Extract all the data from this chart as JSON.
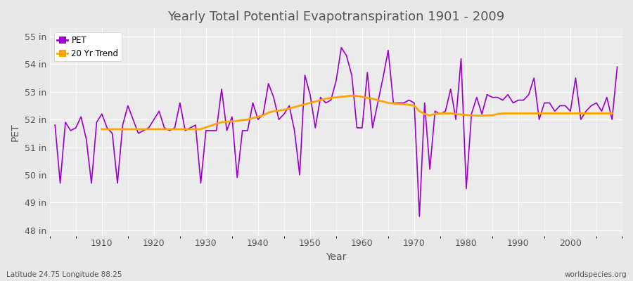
{
  "title": "Yearly Total Potential Evapotranspiration 1901 - 2009",
  "xlabel": "Year",
  "ylabel": "PET",
  "pet_color": "#9B00C8",
  "trend_color": "#FFA500",
  "bg_color": "#E8E8E8",
  "plot_bg_color": "#EBEBEB",
  "grid_color": "#FFFFFF",
  "text_color": "#555555",
  "years": [
    1901,
    1902,
    1903,
    1904,
    1905,
    1906,
    1907,
    1908,
    1909,
    1910,
    1911,
    1912,
    1913,
    1914,
    1915,
    1916,
    1917,
    1918,
    1919,
    1920,
    1921,
    1922,
    1923,
    1924,
    1925,
    1926,
    1927,
    1928,
    1929,
    1930,
    1931,
    1932,
    1933,
    1934,
    1935,
    1936,
    1937,
    1938,
    1939,
    1940,
    1941,
    1942,
    1943,
    1944,
    1945,
    1946,
    1947,
    1948,
    1949,
    1950,
    1951,
    1952,
    1953,
    1954,
    1955,
    1956,
    1957,
    1958,
    1959,
    1960,
    1961,
    1962,
    1963,
    1964,
    1965,
    1966,
    1967,
    1968,
    1969,
    1970,
    1971,
    1972,
    1973,
    1974,
    1975,
    1976,
    1977,
    1978,
    1979,
    1980,
    1981,
    1982,
    1983,
    1984,
    1985,
    1986,
    1987,
    1988,
    1989,
    1990,
    1991,
    1992,
    1993,
    1994,
    1995,
    1996,
    1997,
    1998,
    1999,
    2000,
    2001,
    2002,
    2003,
    2004,
    2005,
    2006,
    2007,
    2008,
    2009
  ],
  "pet_values": [
    51.8,
    49.7,
    51.9,
    51.6,
    51.7,
    52.1,
    51.3,
    49.7,
    51.9,
    52.2,
    51.7,
    51.5,
    49.7,
    51.8,
    52.5,
    52.0,
    51.5,
    51.6,
    51.7,
    52.0,
    52.3,
    51.7,
    51.6,
    51.7,
    52.6,
    51.6,
    51.7,
    51.8,
    49.7,
    51.6,
    51.6,
    51.6,
    53.1,
    51.6,
    52.1,
    49.9,
    51.6,
    51.6,
    52.6,
    52.0,
    52.2,
    53.3,
    52.8,
    52.0,
    52.2,
    52.5,
    51.6,
    50.0,
    53.6,
    52.9,
    51.7,
    52.8,
    52.6,
    52.7,
    53.4,
    54.6,
    54.3,
    53.6,
    51.7,
    51.7,
    53.7,
    51.7,
    52.6,
    53.5,
    54.5,
    52.6,
    52.6,
    52.6,
    52.7,
    52.6,
    48.5,
    52.6,
    50.2,
    52.3,
    52.2,
    52.3,
    53.1,
    52.0,
    54.2,
    49.5,
    52.2,
    52.8,
    52.2,
    52.9,
    52.8,
    52.8,
    52.7,
    52.9,
    52.6,
    52.7,
    52.7,
    52.9,
    53.5,
    52.0,
    52.6,
    52.6,
    52.3,
    52.5,
    52.5,
    52.3,
    53.5,
    52.0,
    52.3,
    52.5,
    52.6,
    52.3,
    52.8,
    52.0,
    53.9
  ],
  "trend_values": [
    null,
    null,
    null,
    null,
    null,
    null,
    null,
    null,
    null,
    51.65,
    51.65,
    51.65,
    51.65,
    51.65,
    51.65,
    51.65,
    51.65,
    51.65,
    51.65,
    51.65,
    51.65,
    51.65,
    51.65,
    51.65,
    51.65,
    51.65,
    51.65,
    51.65,
    51.65,
    51.72,
    51.78,
    51.85,
    51.9,
    51.92,
    51.94,
    51.95,
    51.98,
    52.0,
    52.05,
    52.1,
    52.15,
    52.25,
    52.3,
    52.32,
    52.35,
    52.4,
    52.45,
    52.5,
    52.55,
    52.6,
    52.65,
    52.7,
    52.75,
    52.78,
    52.8,
    52.82,
    52.84,
    52.86,
    52.85,
    52.82,
    52.78,
    52.75,
    52.7,
    52.65,
    52.6,
    52.58,
    52.56,
    52.55,
    52.53,
    52.5,
    52.3,
    52.2,
    52.15,
    52.2,
    52.22,
    52.22,
    52.22,
    52.2,
    52.18,
    52.16,
    52.15,
    52.14,
    52.14,
    52.15,
    52.15,
    52.2,
    52.22,
    52.22,
    52.22,
    52.22,
    52.22,
    52.22,
    52.22,
    52.22,
    52.22,
    52.22,
    52.22,
    52.22,
    52.22,
    52.22,
    52.22,
    52.22,
    52.22,
    52.22,
    52.22,
    52.22,
    52.22,
    52.22
  ],
  "yticks": [
    48,
    49,
    50,
    51,
    52,
    53,
    54,
    55
  ],
  "ytick_labels": [
    "48 in",
    "49 in",
    "50 in",
    "51 in",
    "52 in",
    "53 in",
    "54 in",
    "55 in"
  ],
  "ylim": [
    47.8,
    55.3
  ],
  "xlim": [
    1900,
    2010
  ],
  "xticks": [
    1910,
    1920,
    1930,
    1940,
    1950,
    1960,
    1970,
    1980,
    1990,
    2000
  ],
  "footnote_left": "Latitude 24.75 Longitude 88.25",
  "footnote_right": "worldspecies.org"
}
